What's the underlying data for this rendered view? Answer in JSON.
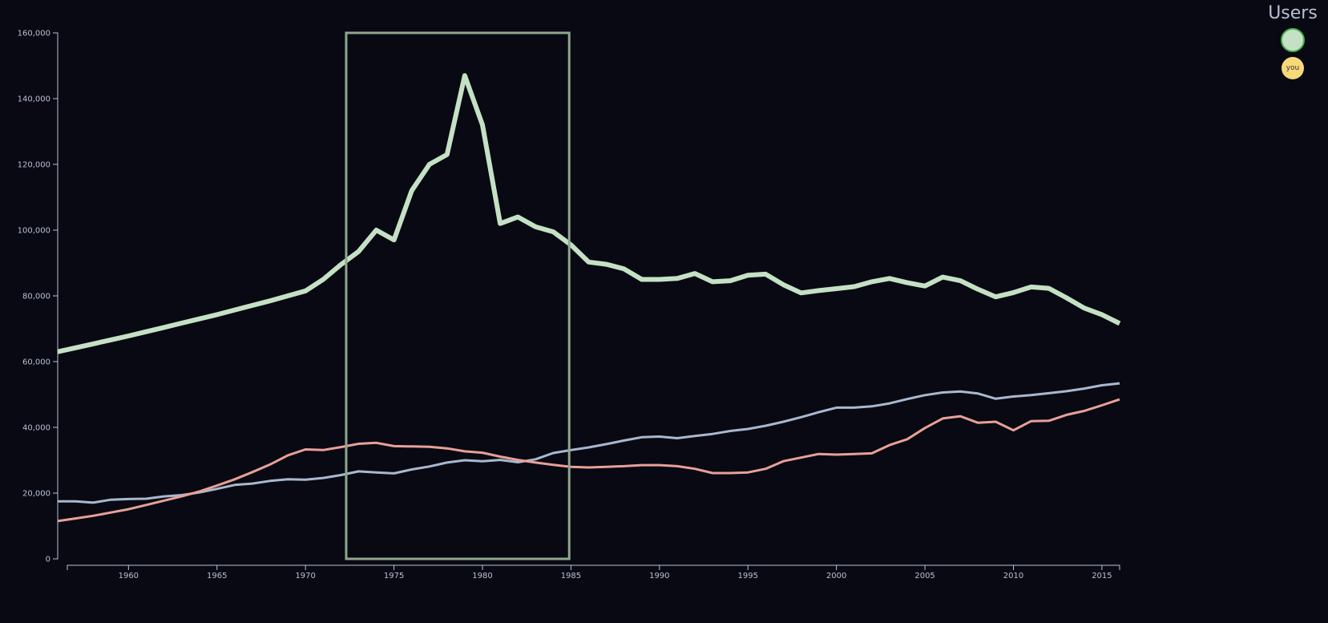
{
  "users_panel": {
    "title": "Users",
    "you_label": "you",
    "colors": {
      "user": "#c5e1c5",
      "user_border": "#4caf50",
      "you": "#f7d97a"
    }
  },
  "chart_data": {
    "type": "line",
    "title": "",
    "xlabel": "",
    "ylabel": "",
    "xlim": [
      1956,
      2016
    ],
    "ylim": [
      0,
      160000
    ],
    "x_ticks": [
      1960,
      1965,
      1970,
      1975,
      1980,
      1985,
      1990,
      1995,
      2000,
      2005,
      2010,
      2015
    ],
    "y_ticks": [
      0,
      20000,
      40000,
      60000,
      80000,
      100000,
      120000,
      140000,
      160000
    ],
    "y_tick_labels": [
      "0",
      "20,000",
      "40,000",
      "60,000",
      "80,000",
      "100,000",
      "120,000",
      "140,000",
      "160,000"
    ],
    "grid": false,
    "selection": {
      "x_range": [
        1972.3,
        1984.9
      ],
      "y_range": [
        0,
        160000
      ],
      "color": "#8fa68f"
    },
    "x": [
      1956,
      1957,
      1958,
      1959,
      1960,
      1961,
      1962,
      1963,
      1964,
      1965,
      1966,
      1967,
      1968,
      1969,
      1970,
      1971,
      1972,
      1973,
      1974,
      1975,
      1976,
      1977,
      1978,
      1979,
      1980,
      1981,
      1982,
      1983,
      1984,
      1985,
      1986,
      1987,
      1988,
      1989,
      1990,
      1991,
      1992,
      1993,
      1994,
      1995,
      1996,
      1997,
      1998,
      1999,
      2000,
      2001,
      2002,
      2003,
      2004,
      2005,
      2006,
      2007,
      2008,
      2009,
      2010,
      2011,
      2012,
      2013,
      2014,
      2015,
      2016
    ],
    "series": [
      {
        "color": "#c5e1c5",
        "width": 6,
        "values": [
          63000,
          64200,
          65400,
          66600,
          67800,
          69100,
          70400,
          71700,
          73000,
          74300,
          75700,
          77100,
          78500,
          80000,
          81500,
          85000,
          89500,
          93500,
          100000,
          97000,
          112000,
          120000,
          123000,
          147000,
          132000,
          102000,
          104000,
          101000,
          99500,
          95500,
          90300,
          89600,
          88200,
          85000,
          85000,
          85300,
          86800,
          84300,
          84600,
          86300,
          86600,
          83400,
          80900,
          81600,
          82200,
          82800,
          84300,
          85300,
          84000,
          83000,
          85700,
          84600,
          82000,
          79700,
          81000,
          82700,
          82300,
          79400,
          76300,
          74300,
          71600
        ]
      },
      {
        "color": "#a8b8d0",
        "width": 3,
        "values": [
          17500,
          17500,
          17100,
          18000,
          18200,
          18300,
          19000,
          19400,
          20200,
          21300,
          22500,
          22900,
          23700,
          24200,
          24100,
          24600,
          25500,
          26600,
          26300,
          26000,
          27200,
          28100,
          29300,
          30000,
          29700,
          30100,
          29400,
          30300,
          32200,
          33100,
          33900,
          34900,
          36000,
          37000,
          37200,
          36700,
          37400,
          38000,
          38900,
          39500,
          40500,
          41700,
          43100,
          44600,
          46000,
          46000,
          46400,
          47300,
          48600,
          49800,
          50600,
          50900,
          50300,
          48700,
          49400,
          49800,
          50400,
          51000,
          51800,
          52800,
          53400
        ]
      },
      {
        "color": "#e8a098",
        "width": 3,
        "values": [
          11500,
          12300,
          13100,
          14100,
          15100,
          16400,
          17700,
          19000,
          20500,
          22300,
          24200,
          26400,
          28700,
          31500,
          33300,
          33100,
          34000,
          35000,
          35300,
          34300,
          34200,
          34100,
          33600,
          32700,
          32300,
          31100,
          30100,
          29300,
          28600,
          28000,
          27800,
          28000,
          28200,
          28500,
          28500,
          28200,
          27400,
          26100,
          26100,
          26300,
          27400,
          29700,
          30800,
          31900,
          31700,
          31900,
          32100,
          34600,
          36400,
          39800,
          42700,
          43400,
          41400,
          41700,
          39100,
          41900,
          42000,
          43800,
          45000,
          46700,
          48500
        ]
      }
    ]
  }
}
